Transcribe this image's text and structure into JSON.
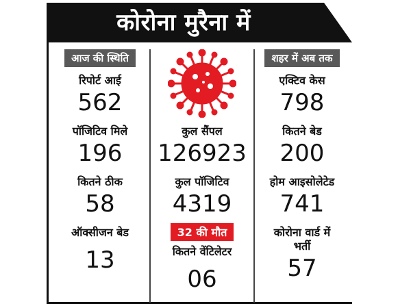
{
  "banner": {
    "title": "कोरोना मुरैना में"
  },
  "left": {
    "header": "आज की स्थिति",
    "items": [
      {
        "label": "रिपोर्ट आई",
        "value": "562"
      },
      {
        "label": "पॉजिटिव मिले",
        "value": "196"
      },
      {
        "label": "कितने ठीक",
        "value": "58"
      },
      {
        "label": "ऑक्सीजन बेड",
        "value": "13"
      }
    ]
  },
  "middle": {
    "icon": "coronavirus-icon",
    "items": [
      {
        "label": "कुल सैंपल",
        "value": "126923"
      },
      {
        "label": "कुल पॉजिटिव",
        "value": "4319"
      }
    ],
    "deaths_badge": "32 की मौत",
    "ventilator": {
      "label": "कितने वेंटिलेटर",
      "value": "06"
    }
  },
  "right": {
    "header": "शहर में अब तक",
    "items": [
      {
        "label": "एक्टिव केस",
        "value": "798"
      },
      {
        "label": "कितने बेड",
        "value": "200"
      },
      {
        "label": "होम आइसोलेटेड",
        "value": "741"
      },
      {
        "label": "कोरोना वार्ड में भर्ती",
        "value": "57"
      }
    ]
  },
  "colors": {
    "banner": "#111111",
    "virus": "#e31b23",
    "header_bg": "#595959",
    "badge": "#e31b23"
  }
}
